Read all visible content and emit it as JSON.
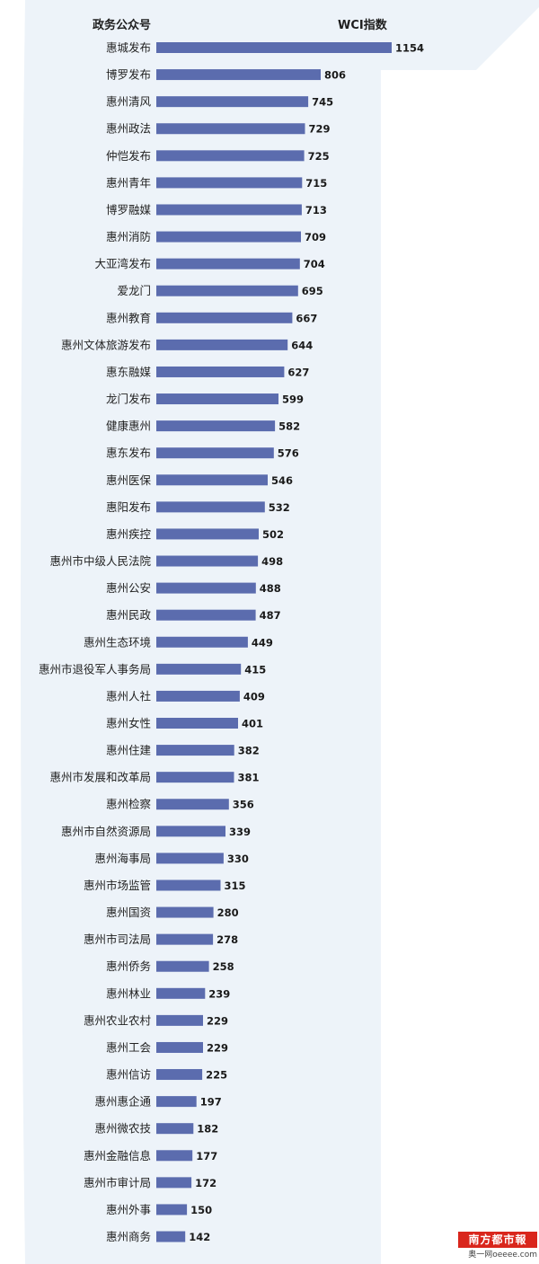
{
  "header": {
    "name_col": "政务公众号",
    "value_col": "WCI指数"
  },
  "colors": {
    "bar": "#5b6cae",
    "background_panel": "#edf3f9",
    "logo_red": "#d9261c"
  },
  "chart_data": {
    "type": "bar",
    "orientation": "horizontal",
    "categories": [
      "惠城发布",
      "博罗发布",
      "惠州清风",
      "惠州政法",
      "仲恺发布",
      "惠州青年",
      "博罗融媒",
      "惠州消防",
      "大亚湾发布",
      "爱龙门",
      "惠州教育",
      "惠州文体旅游发布",
      "惠东融媒",
      "龙门发布",
      "健康惠州",
      "惠东发布",
      "惠州医保",
      "惠阳发布",
      "惠州疾控",
      "惠州市中级人民法院",
      "惠州公安",
      "惠州民政",
      "惠州生态环境",
      "惠州市退役军人事务局",
      "惠州人社",
      "惠州女性",
      "惠州住建",
      "惠州市发展和改革局",
      "惠州检察",
      "惠州市自然资源局",
      "惠州海事局",
      "惠州市场监管",
      "惠州国资",
      "惠州市司法局",
      "惠州侨务",
      "惠州林业",
      "惠州农业农村",
      "惠州工会",
      "惠州信访",
      "惠州惠企通",
      "惠州微农技",
      "惠州金融信息",
      "惠州市审计局",
      "惠州外事",
      "惠州商务"
    ],
    "values": [
      1154,
      806,
      745,
      729,
      725,
      715,
      713,
      709,
      704,
      695,
      667,
      644,
      627,
      599,
      582,
      576,
      546,
      532,
      502,
      498,
      488,
      487,
      449,
      415,
      409,
      401,
      382,
      381,
      356,
      339,
      330,
      315,
      280,
      278,
      258,
      239,
      229,
      229,
      225,
      197,
      182,
      177,
      172,
      150,
      142
    ],
    "xlim": [
      0,
      1154
    ],
    "grid": false,
    "legend": "none"
  },
  "logo": {
    "top_text": "南方都市報",
    "bottom_text": "奥一网oeeee.com"
  }
}
